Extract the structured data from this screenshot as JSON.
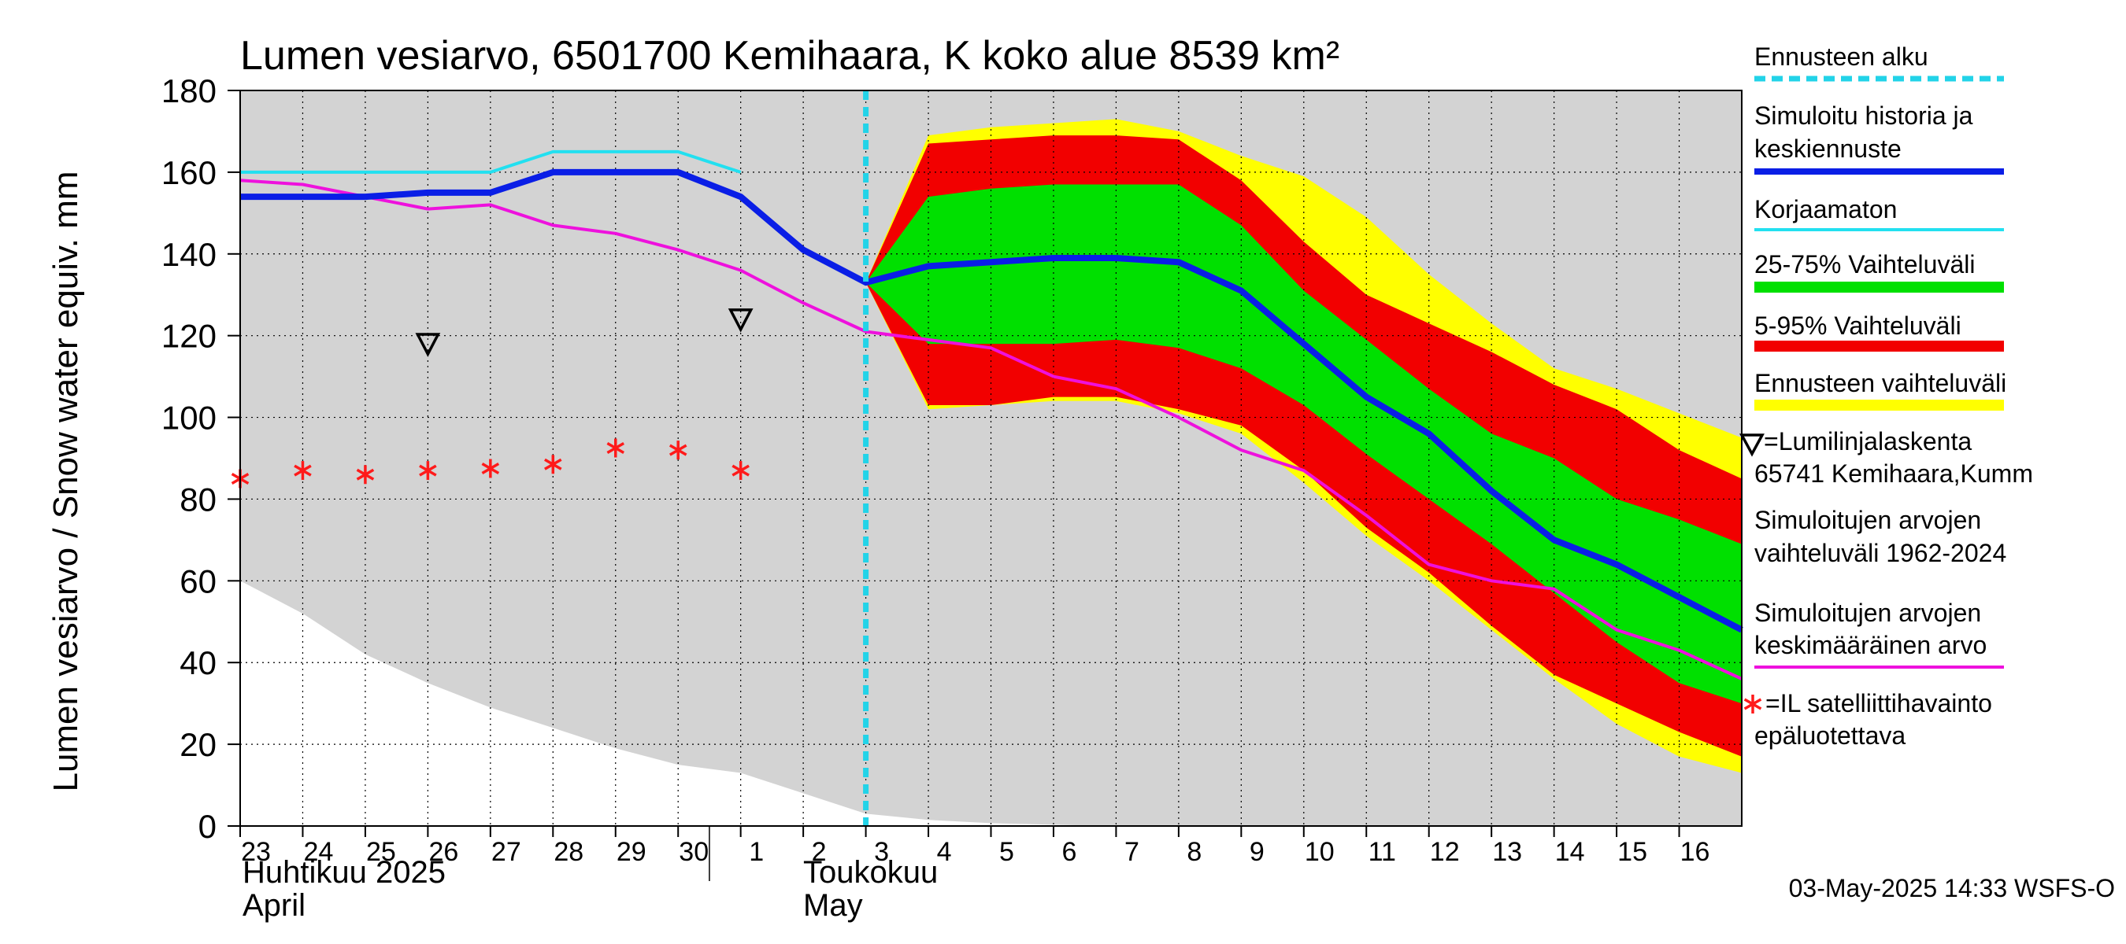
{
  "chart_data": {
    "type": "area",
    "title": "Lumen vesiarvo, 6501700 Kemihaara, K koko alue 8539 km²",
    "ylabel": "Lumen vesiarvo / Snow water equiv.    mm",
    "ylim": [
      0,
      180
    ],
    "yticks": [
      "0",
      "20",
      "40",
      "60",
      "80",
      "100",
      "120",
      "140",
      "160",
      "180"
    ],
    "xlim": [
      -10,
      14
    ],
    "x_ticks": [
      {
        "x": -10,
        "label": "23"
      },
      {
        "x": -9,
        "label": "24"
      },
      {
        "x": -8,
        "label": "25"
      },
      {
        "x": -7,
        "label": "26"
      },
      {
        "x": -6,
        "label": "27"
      },
      {
        "x": -5,
        "label": "28"
      },
      {
        "x": -4,
        "label": "29"
      },
      {
        "x": -3,
        "label": "30"
      },
      {
        "x": -2,
        "label": "1"
      },
      {
        "x": -1,
        "label": "2"
      },
      {
        "x": 0,
        "label": "3"
      },
      {
        "x": 1,
        "label": "4"
      },
      {
        "x": 2,
        "label": "5"
      },
      {
        "x": 3,
        "label": "6"
      },
      {
        "x": 4,
        "label": "7"
      },
      {
        "x": 5,
        "label": "8"
      },
      {
        "x": 6,
        "label": "9"
      },
      {
        "x": 7,
        "label": "10"
      },
      {
        "x": 8,
        "label": "11"
      },
      {
        "x": 9,
        "label": "12"
      },
      {
        "x": 10,
        "label": "13"
      },
      {
        "x": 11,
        "label": "14"
      },
      {
        "x": 12,
        "label": "15"
      },
      {
        "x": 13,
        "label": "16"
      }
    ],
    "month_labels": {
      "april_fi": "Huhtikuu  2025",
      "april_en": "April",
      "may_fi": "Toukokuu",
      "may_en": "May"
    },
    "forecast_start_x": 0,
    "hist_range": {
      "x": [
        -10,
        -9,
        -8,
        -7,
        -6,
        -5,
        -4,
        -3,
        -2,
        -1,
        0,
        1,
        2,
        3,
        4,
        4.5,
        14
      ],
      "upper": [
        180,
        180,
        180,
        180,
        180,
        180,
        180,
        180,
        180,
        180,
        180,
        180,
        180,
        180,
        180,
        180,
        180
      ],
      "lower": [
        60,
        52,
        42,
        35,
        29,
        24,
        19,
        15,
        13,
        8,
        3,
        1.5,
        0.7,
        0.3,
        0,
        0,
        0
      ]
    },
    "forecast_x": [
      0,
      1,
      2,
      3,
      4,
      5,
      6,
      7,
      8,
      9,
      10,
      11,
      12,
      13,
      14
    ],
    "ennuste_upper": [
      133,
      169,
      171,
      172,
      173,
      170,
      164,
      159,
      149,
      135,
      123,
      112,
      107,
      101,
      95
    ],
    "ennuste_lower": [
      133,
      102,
      103,
      104,
      104,
      101,
      96,
      84,
      71,
      60,
      48,
      36,
      25,
      17,
      13
    ],
    "p95": [
      133,
      167,
      168,
      169,
      169,
      168,
      158,
      143,
      130,
      123,
      116,
      108,
      102,
      92,
      85
    ],
    "p5": [
      133,
      103,
      103,
      105,
      105,
      102,
      98,
      87,
      73,
      62,
      49,
      37,
      30,
      23,
      17
    ],
    "p75": [
      133,
      154,
      156,
      157,
      157,
      157,
      147,
      131,
      119,
      107,
      96,
      90,
      80,
      75,
      69
    ],
    "p25": [
      133,
      118,
      118,
      118,
      119,
      117,
      112,
      103,
      91,
      80,
      69,
      57,
      45,
      35,
      30
    ],
    "simuloitu": {
      "x": [
        -10,
        -9,
        -8,
        -7,
        -6,
        -5,
        -4,
        -3,
        -2,
        -1,
        0,
        1,
        2,
        3,
        4,
        5,
        6,
        7,
        8,
        9,
        10,
        11,
        12,
        13,
        14
      ],
      "y": [
        154,
        154,
        154,
        155,
        155,
        160,
        160,
        160,
        154,
        141,
        133,
        137,
        138,
        139,
        139,
        138,
        131,
        118,
        105,
        96,
        82,
        70,
        64,
        56,
        48
      ]
    },
    "korjaamaton": {
      "x": [
        -10,
        -9,
        -8,
        -7,
        -6,
        -5,
        -4,
        -3,
        -2
      ],
      "y": [
        160,
        160,
        160,
        160,
        160,
        165,
        165,
        165,
        160
      ]
    },
    "keskiarvo": {
      "x": [
        -10,
        -9,
        -8,
        -7,
        -6,
        -5,
        -4,
        -3,
        -2,
        -1,
        0,
        1,
        2,
        3,
        4,
        5,
        6,
        7,
        8,
        9,
        10,
        11,
        12,
        13,
        14
      ],
      "y": [
        158,
        157,
        154,
        151,
        152,
        147,
        145,
        141,
        136,
        128,
        121,
        119,
        117,
        110,
        107,
        100,
        92,
        87,
        76,
        64,
        60,
        58,
        48,
        43,
        36
      ]
    },
    "lumilinja": [
      {
        "x": -7,
        "y": 118
      },
      {
        "x": -2,
        "y": 124
      }
    ],
    "satelliitti": [
      {
        "x": -10,
        "y": 85
      },
      {
        "x": -9,
        "y": 87
      },
      {
        "x": -8,
        "y": 86
      },
      {
        "x": -7,
        "y": 87
      },
      {
        "x": -6,
        "y": 87.5
      },
      {
        "x": -5,
        "y": 88.5
      },
      {
        "x": -4,
        "y": 92.5
      },
      {
        "x": -3,
        "y": 92
      },
      {
        "x": -2,
        "y": 87
      }
    ],
    "legend": [
      {
        "key": "ennusteen_alku",
        "label": "Ennusteen alku",
        "color": "#22d3e8"
      },
      {
        "key": "simuloitu",
        "label": "Simuloitu historia ja\nkeskiennuste",
        "color": "#0a1ee6"
      },
      {
        "key": "korjaamaton",
        "label": "Korjaamaton",
        "color": "#22e0f0"
      },
      {
        "key": "p25_75",
        "label": "25-75% Vaihteluväli",
        "color": "#00e000"
      },
      {
        "key": "p5_95",
        "label": "5-95% Vaihteluväli",
        "color": "#f20000"
      },
      {
        "key": "ennuste",
        "label": "Ennusteen vaihteluväli",
        "color": "#ffff00"
      },
      {
        "key": "lumilinja",
        "label": "=Lumilinjalaskenta\n65741 Kemihaara,Kumm",
        "color": "#000000"
      },
      {
        "key": "hist",
        "label": "Simuloitujen arvojen\nvaihteluväli 1962-2024",
        "color": "#d3d3d3"
      },
      {
        "key": "keskiarvo",
        "label": "Simuloitujen arvojen\nkeskimääräinen arvo",
        "color": "#ee11dd"
      },
      {
        "key": "satelliitti",
        "label": "=IL satelliittihavainto\nepäluotettava",
        "color": "#ff1a1a"
      }
    ],
    "footer": "03-May-2025 14:33 WSFS-O",
    "colors": {
      "hist": "#d3d3d3",
      "ennuste": "#ffff00",
      "p5_95": "#f20000",
      "p25_75": "#00e000",
      "simuloitu": "#0a1ee6",
      "korjaamaton": "#22e0f0",
      "keskiarvo": "#ee11dd",
      "forecast_line": "#22d3e8",
      "satelliitti": "#ff1a1a"
    }
  }
}
